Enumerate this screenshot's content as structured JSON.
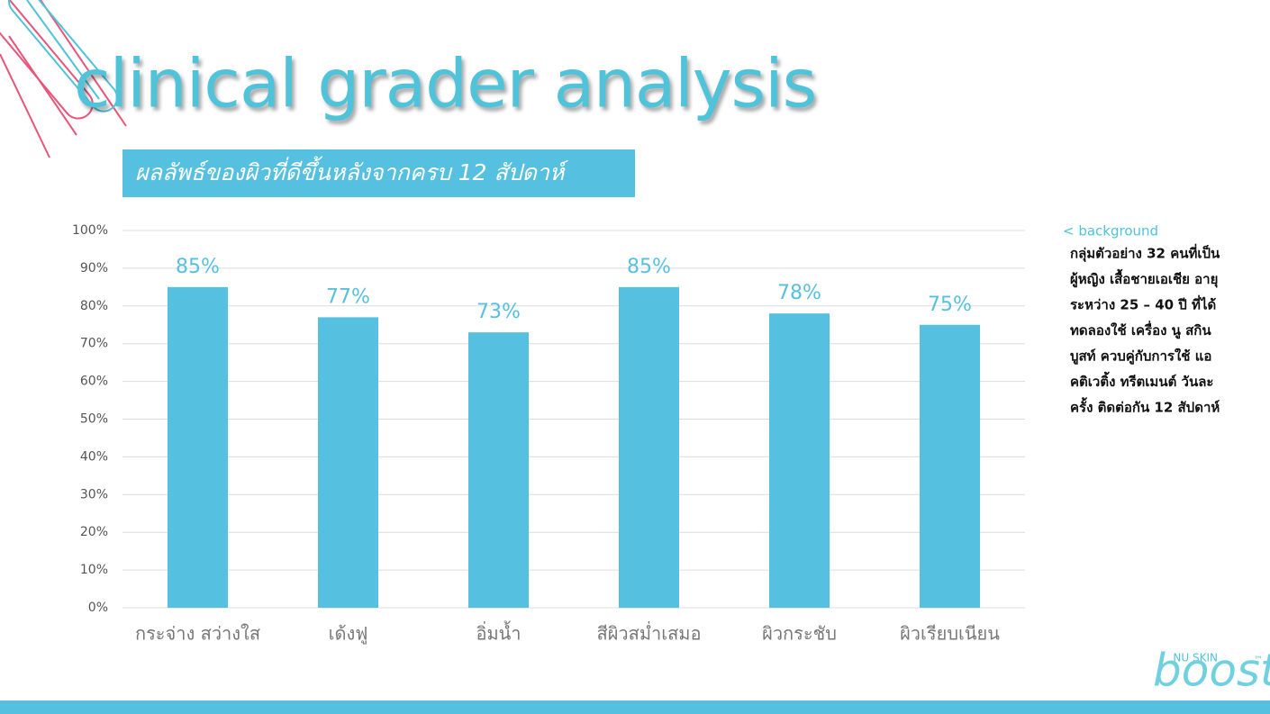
{
  "chart_data": {
    "type": "bar",
    "title": "clinical grader analysis",
    "subtitle": "ผลลัพธ์ของผิวที่ดีขึ้นหลังจากครบ 12 สัปดาห์",
    "categories": [
      "กระจ่าง สว่างใส",
      "เด้งฟู",
      "อิ่มน้ำ",
      "สีผิวสม่ำเสมอ",
      "ผิวกระชับ",
      "ผิวเรียบเนียน"
    ],
    "values": [
      85,
      77,
      73,
      85,
      78,
      75
    ],
    "value_labels": [
      "85%",
      "77%",
      "73%",
      "85%",
      "78%",
      "75%"
    ],
    "color": "#56c0e0",
    "ylim": [
      0,
      100
    ],
    "yticks": [
      {
        "value": 0,
        "label": "0%"
      },
      {
        "value": 10,
        "label": "10%"
      },
      {
        "value": 20,
        "label": "20%"
      },
      {
        "value": 30,
        "label": "30%"
      },
      {
        "value": 40,
        "label": "40%"
      },
      {
        "value": 50,
        "label": "50%"
      },
      {
        "value": 60,
        "label": "60%"
      },
      {
        "value": 70,
        "label": "70%"
      },
      {
        "value": 80,
        "label": "80%"
      },
      {
        "value": 90,
        "label": "90%"
      },
      {
        "value": 100,
        "label": "100%"
      }
    ],
    "grid": true
  },
  "sidebar": {
    "heading": "< background",
    "lines": [
      "กลุ่มตัวอย่าง 32 คนที่เป็น",
      "ผู้หญิง เสื้อชายเอเชีย อายุ",
      "ระหว่าง 25 – 40 ปี ที่ได้",
      "ทดลองใช้ เครื่อง นู สกิน",
      "บูสท์ ควบคู่กับการใช้ แอ",
      "คติเวติ้ง ทรีตเมนต์ วันละ",
      "ครั้ง ติดต่อกัน 12 สัปดาห์"
    ]
  },
  "logo": {
    "brand": "NU SKIN",
    "name": "boost",
    "mark": "™"
  }
}
